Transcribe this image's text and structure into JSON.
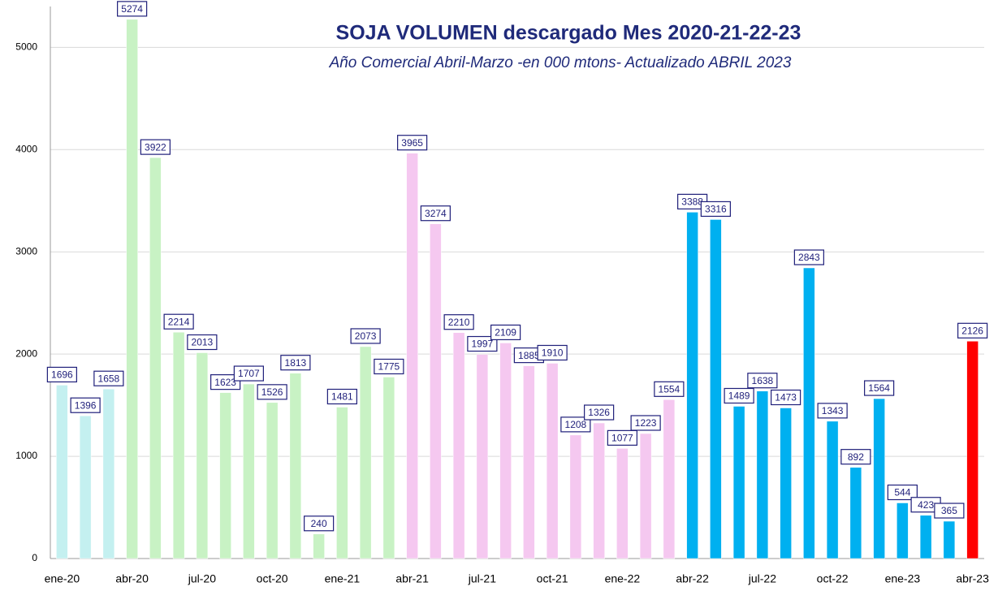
{
  "chart_data": {
    "type": "bar",
    "title": "SOJA VOLUMEN   descargado Mes 2020-21-22-23",
    "subtitle": "Año Comercial Abril-Marzo -en 000 mtons- Actualizado ABRIL   2023",
    "categories": [
      "ene-20",
      null,
      null,
      "abr-20",
      null,
      null,
      "jul-20",
      null,
      null,
      "oct-20",
      null,
      null,
      "ene-21",
      null,
      null,
      "abr-21",
      null,
      null,
      "jul-21",
      null,
      null,
      "oct-21",
      null,
      null,
      "ene-22",
      null,
      null,
      "abr-22",
      null,
      null,
      "jul-22",
      null,
      null,
      "oct-22",
      null,
      null,
      "ene-23",
      null,
      null,
      "abr-23"
    ],
    "values": [
      1696,
      1396,
      1658,
      5274,
      3922,
      2214,
      2013,
      1623,
      1707,
      1526,
      1813,
      240,
      1481,
      2073,
      1775,
      3965,
      3274,
      2210,
      1997,
      2109,
      1885,
      1910,
      1208,
      1326,
      1077,
      1223,
      1554,
      3388,
      3316,
      1489,
      1638,
      1473,
      2843,
      1343,
      892,
      1564,
      544,
      423,
      365,
      2126
    ],
    "colors": [
      "#c4f0f0",
      "#c4f0f0",
      "#c4f0f0",
      "#c8f2c4",
      "#c8f2c4",
      "#c8f2c4",
      "#c8f2c4",
      "#c8f2c4",
      "#c8f2c4",
      "#c8f2c4",
      "#c8f2c4",
      "#c8f2c4",
      "#c8f2c4",
      "#c8f2c4",
      "#c8f2c4",
      "#f5c8f0",
      "#f5c8f0",
      "#f5c8f0",
      "#f5c8f0",
      "#f5c8f0",
      "#f5c8f0",
      "#f5c8f0",
      "#f5c8f0",
      "#f5c8f0",
      "#f5c8f0",
      "#f5c8f0",
      "#f5c8f0",
      "#00b0f0",
      "#00b0f0",
      "#00b0f0",
      "#00b0f0",
      "#00b0f0",
      "#00b0f0",
      "#00b0f0",
      "#00b0f0",
      "#00b0f0",
      "#00b0f0",
      "#00b0f0",
      "#00b0f0",
      "#ff0000"
    ],
    "ylim": [
      0,
      5400
    ],
    "yticks": [
      0,
      1000,
      2000,
      3000,
      4000,
      5000
    ],
    "grid": true
  }
}
